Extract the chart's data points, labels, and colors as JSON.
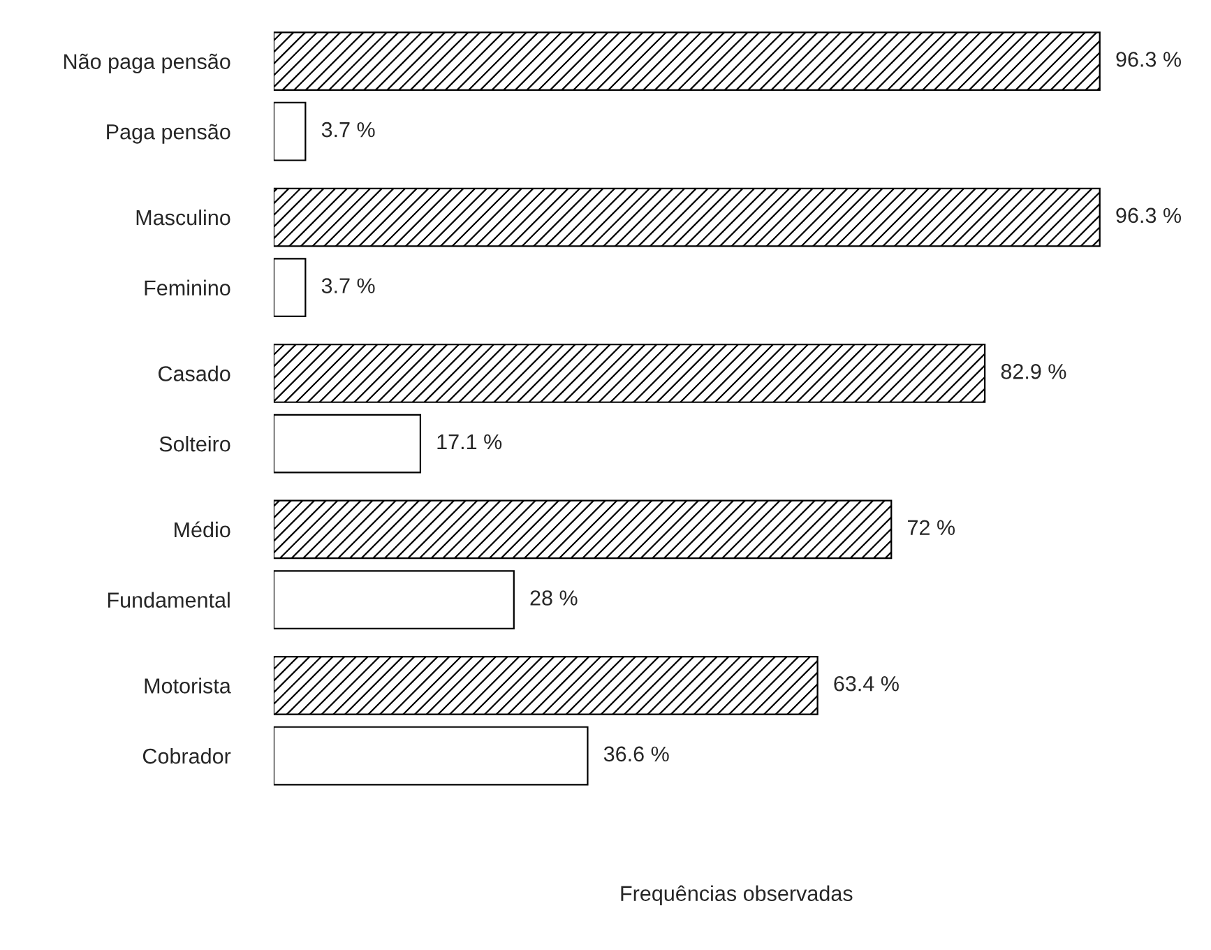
{
  "chart_data": {
    "type": "bar",
    "orientation": "horizontal",
    "xlabel": "Frequências observadas",
    "categories": [
      "Não paga pensão",
      "Paga pensão",
      "Masculino",
      "Feminino",
      "Casado",
      "Solteiro",
      "Médio",
      "Fundamental",
      "Motorista",
      "Cobrador"
    ],
    "series": [
      {
        "color": "#000000",
        "values": [
          96.3,
          null,
          96.3,
          null,
          82.9,
          null,
          72,
          null,
          63.4,
          null
        ],
        "value_labels": [
          "96.3 %",
          null,
          "96.3 %",
          null,
          "82.9 %",
          null,
          "72 %",
          null,
          "63.4 %",
          null
        ]
      },
      {
        "color": "#ffffff",
        "values": [
          null,
          3.7,
          null,
          3.7,
          null,
          17.1,
          null,
          28,
          null,
          36.6
        ],
        "value_labels": [
          null,
          "3.7 %",
          null,
          "3.7 %",
          null,
          "17.1 %",
          null,
          "28 %",
          null,
          "36.6 %"
        ]
      }
    ],
    "grid": false,
    "legend": false
  }
}
